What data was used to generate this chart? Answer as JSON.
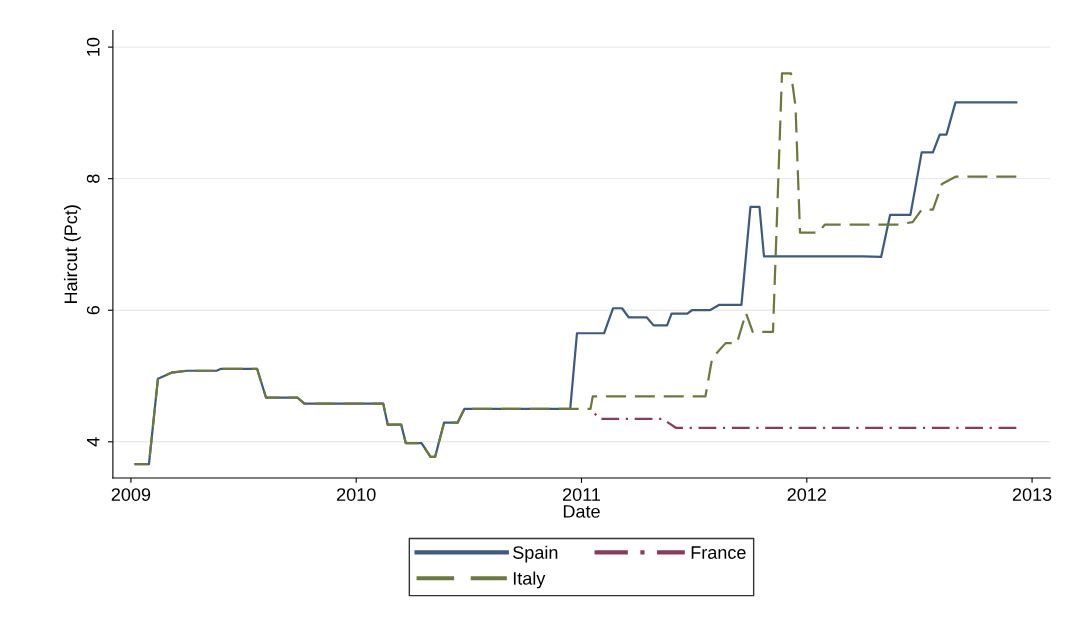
{
  "chart_data": {
    "type": "line",
    "xlabel": "Date",
    "ylabel": "Haircut (Pct)",
    "xlim": [
      2008.92,
      2013.08
    ],
    "xticks": [
      2009,
      2010,
      2011,
      2012,
      2013
    ],
    "ylim": [
      3.45,
      10.25
    ],
    "yticks": [
      4,
      6,
      8,
      10
    ],
    "grid": "y",
    "legend": "bottom",
    "marker": "none",
    "series": [
      {
        "name": "Spain",
        "color": "#3d5a80",
        "line_style": "solid",
        "x": [
          2009.02,
          2009.08,
          2009.12,
          2009.18,
          2009.25,
          2009.38,
          2009.4,
          2009.56,
          2009.6,
          2009.74,
          2009.77,
          2010.12,
          2010.14,
          2010.2,
          2010.22,
          2010.29,
          2010.33,
          2010.35,
          2010.39,
          2010.45,
          2010.48,
          2010.95,
          2010.98,
          2011.1,
          2011.14,
          2011.18,
          2011.21,
          2011.29,
          2011.32,
          2011.38,
          2011.4,
          2011.47,
          2011.49,
          2011.57,
          2011.61,
          2011.71,
          2011.75,
          2011.79,
          2011.81,
          2012.25,
          2012.33,
          2012.37,
          2012.46,
          2012.51,
          2012.56,
          2012.59,
          2012.62,
          2012.66,
          2012.93
        ],
        "values": [
          3.66,
          3.66,
          4.96,
          5.05,
          5.08,
          5.08,
          5.11,
          5.11,
          4.67,
          4.67,
          4.58,
          4.58,
          4.26,
          4.26,
          3.98,
          3.98,
          3.77,
          3.77,
          4.29,
          4.29,
          4.5,
          4.5,
          5.65,
          5.65,
          6.03,
          6.03,
          5.89,
          5.89,
          5.77,
          5.77,
          5.95,
          5.95,
          6.0,
          6.0,
          6.08,
          6.08,
          7.57,
          7.57,
          6.82,
          6.82,
          6.81,
          7.45,
          7.45,
          8.4,
          8.4,
          8.67,
          8.67,
          9.16,
          9.16
        ]
      },
      {
        "name": "France",
        "color": "#8b3a5a",
        "line_style": "dashdot",
        "x": [
          2011.04,
          2011.08,
          2011.36,
          2011.42,
          2012.93
        ],
        "values": [
          4.5,
          4.35,
          4.35,
          4.21,
          4.21
        ]
      },
      {
        "name": "Italy",
        "color": "#6b7a3a",
        "line_style": "dashed",
        "x": [
          2009.02,
          2009.08,
          2009.12,
          2009.18,
          2009.25,
          2009.38,
          2009.4,
          2009.56,
          2009.6,
          2009.74,
          2009.77,
          2010.12,
          2010.14,
          2010.2,
          2010.22,
          2010.29,
          2010.33,
          2010.35,
          2010.39,
          2010.45,
          2010.48,
          2011.04,
          2011.05,
          2011.55,
          2011.58,
          2011.64,
          2011.69,
          2011.73,
          2011.76,
          2011.85,
          2011.89,
          2011.93,
          2011.95,
          2011.97,
          2012.05,
          2012.08,
          2012.4,
          2012.47,
          2012.51,
          2012.56,
          2012.6,
          2012.66,
          2012.93
        ],
        "values": [
          3.66,
          3.66,
          4.96,
          5.05,
          5.08,
          5.08,
          5.11,
          5.11,
          4.67,
          4.67,
          4.58,
          4.58,
          4.26,
          4.26,
          3.98,
          3.98,
          3.77,
          3.77,
          4.29,
          4.29,
          4.5,
          4.5,
          4.69,
          4.69,
          5.27,
          5.5,
          5.5,
          5.96,
          5.67,
          5.67,
          9.6,
          9.6,
          9.1,
          7.18,
          7.18,
          7.3,
          7.3,
          7.34,
          7.53,
          7.53,
          7.92,
          8.03,
          8.03
        ]
      }
    ]
  }
}
